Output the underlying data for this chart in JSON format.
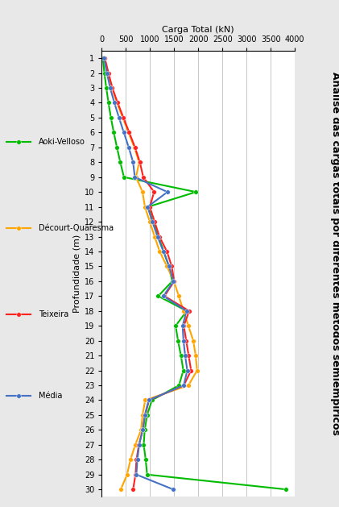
{
  "title": "Análise das cargas totais por diferentes métodos semiempíricos",
  "xlabel_top": "Carga Total (kN)",
  "ylabel": "Profundidade (m)",
  "xmin": 0,
  "xmax": 4000,
  "depth_min": 1,
  "depth_max": 30,
  "xticks": [
    0,
    500,
    1000,
    1500,
    2000,
    2500,
    3000,
    3500,
    4000
  ],
  "yticks": [
    1,
    2,
    3,
    4,
    5,
    6,
    7,
    8,
    9,
    10,
    11,
    12,
    13,
    14,
    15,
    16,
    17,
    18,
    19,
    20,
    21,
    22,
    23,
    24,
    25,
    26,
    27,
    28,
    29,
    30
  ],
  "series_order": [
    "Aoki-Velloso",
    "Décourt-Quaresma",
    "Teixeira",
    "Média"
  ],
  "series": {
    "Aoki-Velloso": {
      "color": "#00BB00",
      "values": [
        25,
        55,
        95,
        140,
        190,
        250,
        315,
        385,
        460,
        1950,
        960,
        1060,
        1175,
        1285,
        1390,
        1460,
        1170,
        1760,
        1530,
        1580,
        1640,
        1690,
        1600,
        1040,
        940,
        890,
        870,
        910,
        940,
        3820
      ]
    },
    "Décourt-Quaresma": {
      "color": "#FFA500",
      "values": [
        55,
        130,
        215,
        315,
        435,
        555,
        675,
        775,
        710,
        845,
        895,
        995,
        1095,
        1200,
        1350,
        1495,
        1595,
        1695,
        1795,
        1895,
        1945,
        1975,
        1795,
        900,
        845,
        815,
        695,
        595,
        525,
        395
      ]
    },
    "Teixeira": {
      "color": "#FF2020",
      "values": [
        65,
        140,
        220,
        330,
        450,
        570,
        690,
        790,
        860,
        1085,
        995,
        1095,
        1195,
        1350,
        1450,
        1500,
        1300,
        1810,
        1700,
        1750,
        1800,
        1850,
        1700,
        980,
        900,
        850,
        770,
        720,
        700,
        650
      ]
    },
    "Média": {
      "color": "#4472C4",
      "values": [
        48,
        108,
        175,
        262,
        358,
        458,
        560,
        650,
        685,
        1360,
        950,
        1050,
        1155,
        1278,
        1397,
        1485,
        1278,
        1755,
        1675,
        1693,
        1728,
        1771,
        1698,
        973,
        892,
        848,
        775,
        738,
        718,
        1480
      ]
    }
  },
  "bg_color": "#E8E8E8",
  "plot_bg": "#FFFFFF",
  "grid_color": "#C8C8C8",
  "title_fontsize": 9,
  "axis_label_fontsize": 8,
  "tick_fontsize": 7,
  "legend_fontsize": 7,
  "linewidth": 1.5,
  "markersize": 4
}
